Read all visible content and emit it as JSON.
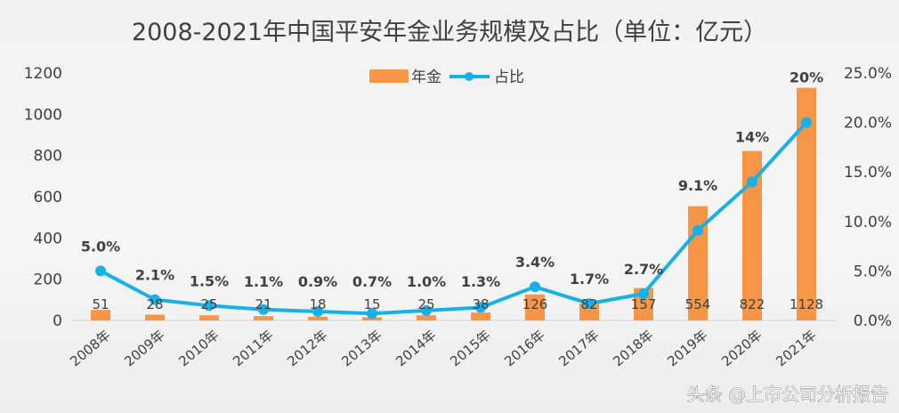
{
  "chart_data": {
    "type": "bar+line",
    "title": "2008-2021年中国平安年金业务规模及占比（单位：亿元）",
    "categories": [
      "2008年",
      "2009年",
      "2010年",
      "2011年",
      "2012年",
      "2013年",
      "2014年",
      "2015年",
      "2016年",
      "2017年",
      "2018年",
      "2019年",
      "2020年",
      "2021年"
    ],
    "series": [
      {
        "name": "年金",
        "type": "bar",
        "axis": "left",
        "color": "#f79646",
        "values": [
          51,
          28,
          25,
          21,
          18,
          15,
          25,
          38,
          126,
          82,
          157,
          554,
          822,
          1128
        ],
        "labels": [
          "51",
          "28",
          "25",
          "21",
          "18",
          "15",
          "25",
          "38",
          "126",
          "82",
          "157",
          "554",
          "822",
          "1128"
        ]
      },
      {
        "name": "占比",
        "type": "line",
        "axis": "right",
        "color": "#18b0e8",
        "values": [
          5.0,
          2.1,
          1.5,
          1.1,
          0.9,
          0.7,
          1.0,
          1.3,
          3.4,
          1.7,
          2.7,
          9.1,
          14,
          20
        ],
        "labels": [
          "5.0%",
          "2.1%",
          "1.5%",
          "1.1%",
          "0.9%",
          "0.7%",
          "1.0%",
          "1.3%",
          "3.4%",
          "1.7%",
          "2.7%",
          "9.1%",
          "14%",
          "20%"
        ]
      }
    ],
    "ylim_left": [
      0,
      1200
    ],
    "yticks_left": [
      "0",
      "200",
      "400",
      "600",
      "800",
      "1000",
      "1200"
    ],
    "ylim_right": [
      0,
      25
    ],
    "yticks_right": [
      "0.0%",
      "5.0%",
      "10.0%",
      "15.0%",
      "20.0%",
      "25.0%"
    ],
    "grid": false,
    "legend": "top-center"
  },
  "watermark": "头条 @上市公司分析报告"
}
